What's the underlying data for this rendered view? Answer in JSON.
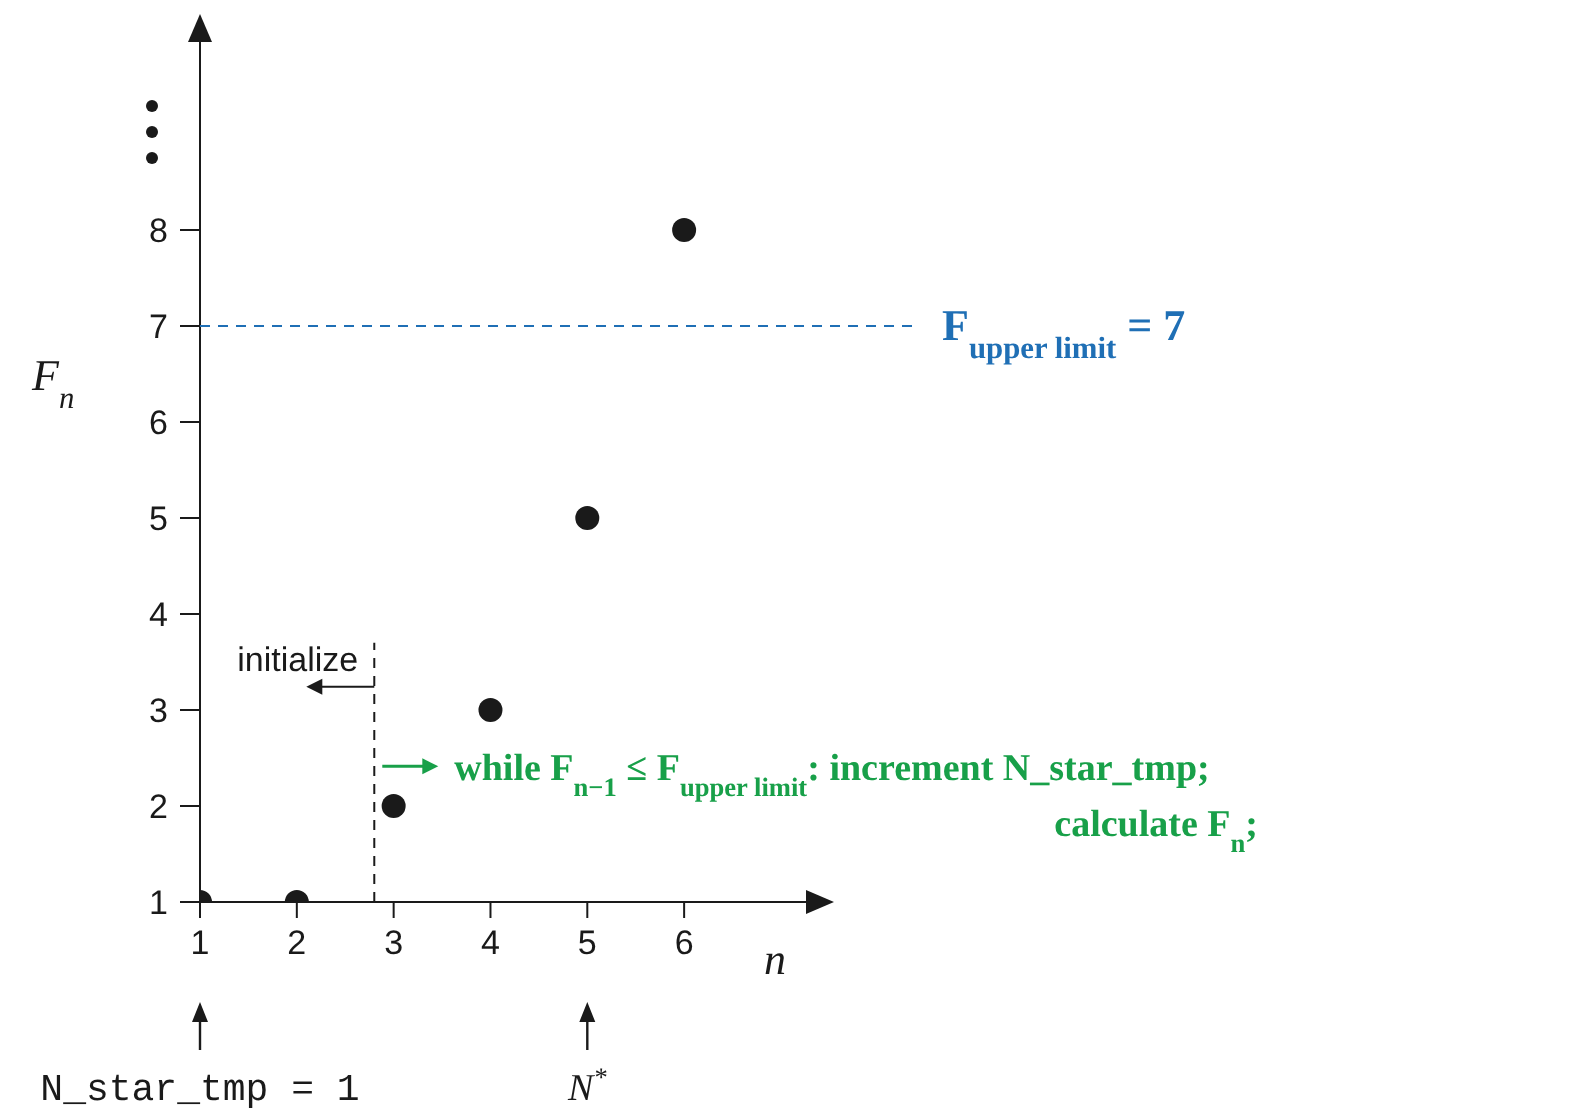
{
  "chart_data": {
    "type": "scatter",
    "xlabel": "n",
    "ylabel": "F$_{n}$",
    "x": [
      1,
      2,
      3,
      4,
      5,
      6
    ],
    "values": [
      1,
      1,
      2,
      3,
      5,
      8
    ],
    "color": "#1a1a1a",
    "marker": "circle",
    "xlim": [
      1,
      7.3
    ],
    "ylim": [
      1,
      10
    ],
    "xticks": [
      1,
      2,
      3,
      4,
      5,
      6
    ],
    "yticks": [
      1,
      2,
      3,
      4,
      5,
      6,
      7,
      8
    ],
    "ref_lines": [
      {
        "axis": "y",
        "value": 7,
        "label": "F$_{upper limit}$ = 7",
        "color": "#1f6fb5",
        "line_style": "dashed"
      },
      {
        "axis": "x",
        "value": 2.8,
        "label": "initialize",
        "color": "#1a1a1a",
        "line_style": "dashed"
      }
    ],
    "annotations": [
      "N_star_tmp = 1",
      "N$^{*}$",
      "while F$_{n−1}$ ≤ F$_{upper limit}$: increment N_star_tmp;",
      "calculate F$_{n}$;"
    ]
  }
}
